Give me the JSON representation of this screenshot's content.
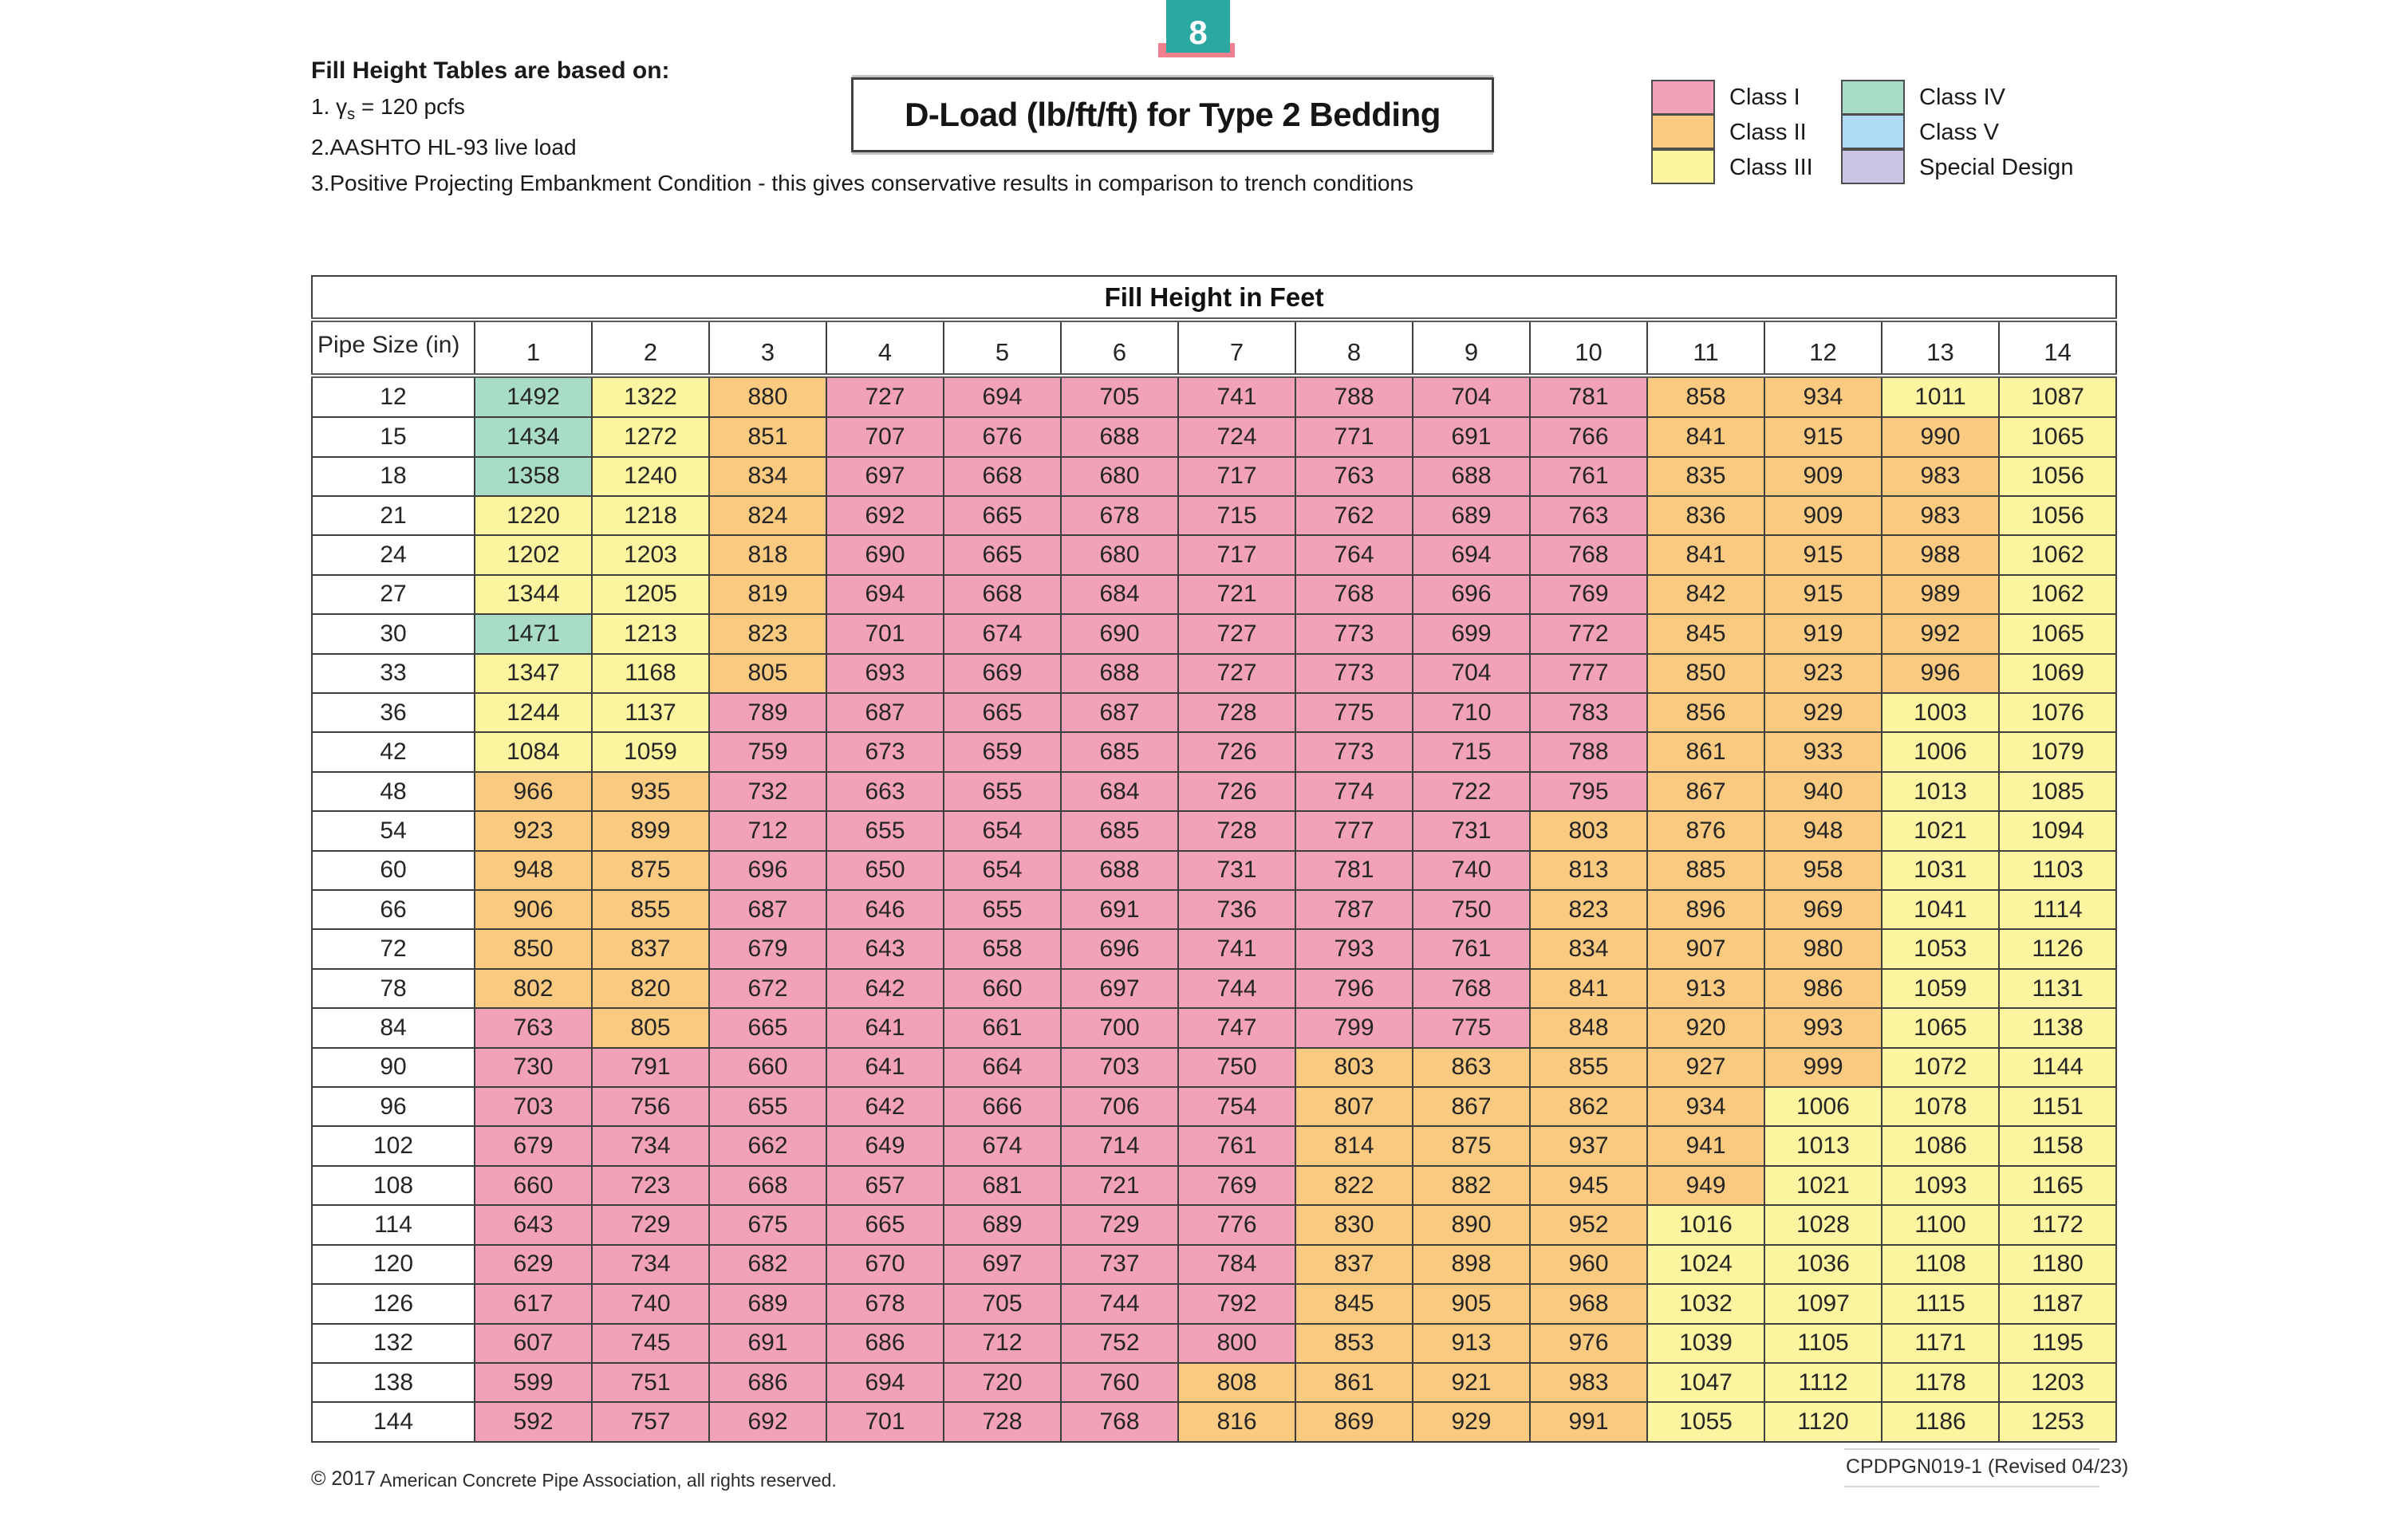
{
  "page_badge": {
    "number": "8",
    "color": "#2ba8a2",
    "underline_color": "#f08090"
  },
  "notes": {
    "heading": "Fill Height Tables are based on:",
    "item1_prefix": "1. γ",
    "item1_sub": "s",
    "item1_suffix": " = 120 pcfs",
    "item2": "2.AASHTO HL-93 live load",
    "item3": "3.Positive Projecting Embankment Condition - this gives conservative results in comparison to trench conditions"
  },
  "title": "D-Load (lb/ft/ft) for Type 2 Bedding",
  "legend": {
    "left": [
      {
        "label": "Class I",
        "color": "#f2a2b8"
      },
      {
        "label": "Class II",
        "color": "#fbca81"
      },
      {
        "label": "Class III",
        "color": "#fcf49f"
      }
    ],
    "right": [
      {
        "label": "Class IV",
        "color": "#a9dcc6"
      },
      {
        "label": "Class V",
        "color": "#aedaf5"
      },
      {
        "label": "Special Design",
        "color": "#c8c4e2"
      }
    ]
  },
  "table": {
    "span_header": "Fill Height in Feet",
    "corner_header": "Pipe Size (in)",
    "fill_height_columns": [
      "1",
      "2",
      "3",
      "4",
      "5",
      "6",
      "7",
      "8",
      "9",
      "10",
      "11",
      "12",
      "13",
      "14"
    ],
    "class_limits": {
      "class1_max": 800,
      "class2_max": 1000,
      "class3_max": 1350
    },
    "cell_colors": {
      "class1": "#f2a2b8",
      "class2": "#fbca81",
      "class3": "#fcf49f",
      "class4": "#a9dcc6"
    },
    "rows": [
      {
        "pipe_size": "12",
        "values": [
          1492,
          1322,
          880,
          727,
          694,
          705,
          741,
          788,
          704,
          781,
          858,
          934,
          1011,
          1087
        ]
      },
      {
        "pipe_size": "15",
        "values": [
          1434,
          1272,
          851,
          707,
          676,
          688,
          724,
          771,
          691,
          766,
          841,
          915,
          990,
          1065
        ]
      },
      {
        "pipe_size": "18",
        "values": [
          1358,
          1240,
          834,
          697,
          668,
          680,
          717,
          763,
          688,
          761,
          835,
          909,
          983,
          1056
        ]
      },
      {
        "pipe_size": "21",
        "values": [
          1220,
          1218,
          824,
          692,
          665,
          678,
          715,
          762,
          689,
          763,
          836,
          909,
          983,
          1056
        ]
      },
      {
        "pipe_size": "24",
        "values": [
          1202,
          1203,
          818,
          690,
          665,
          680,
          717,
          764,
          694,
          768,
          841,
          915,
          988,
          1062
        ]
      },
      {
        "pipe_size": "27",
        "values": [
          1344,
          1205,
          819,
          694,
          668,
          684,
          721,
          768,
          696,
          769,
          842,
          915,
          989,
          1062
        ]
      },
      {
        "pipe_size": "30",
        "values": [
          1471,
          1213,
          823,
          701,
          674,
          690,
          727,
          773,
          699,
          772,
          845,
          919,
          992,
          1065
        ]
      },
      {
        "pipe_size": "33",
        "values": [
          1347,
          1168,
          805,
          693,
          669,
          688,
          727,
          773,
          704,
          777,
          850,
          923,
          996,
          1069
        ]
      },
      {
        "pipe_size": "36",
        "values": [
          1244,
          1137,
          789,
          687,
          665,
          687,
          728,
          775,
          710,
          783,
          856,
          929,
          1003,
          1076
        ]
      },
      {
        "pipe_size": "42",
        "values": [
          1084,
          1059,
          759,
          673,
          659,
          685,
          726,
          773,
          715,
          788,
          861,
          933,
          1006,
          1079
        ]
      },
      {
        "pipe_size": "48",
        "values": [
          966,
          935,
          732,
          663,
          655,
          684,
          726,
          774,
          722,
          795,
          867,
          940,
          1013,
          1085
        ]
      },
      {
        "pipe_size": "54",
        "values": [
          923,
          899,
          712,
          655,
          654,
          685,
          728,
          777,
          731,
          803,
          876,
          948,
          1021,
          1094
        ]
      },
      {
        "pipe_size": "60",
        "values": [
          948,
          875,
          696,
          650,
          654,
          688,
          731,
          781,
          740,
          813,
          885,
          958,
          1031,
          1103
        ]
      },
      {
        "pipe_size": "66",
        "values": [
          906,
          855,
          687,
          646,
          655,
          691,
          736,
          787,
          750,
          823,
          896,
          969,
          1041,
          1114
        ]
      },
      {
        "pipe_size": "72",
        "values": [
          850,
          837,
          679,
          643,
          658,
          696,
          741,
          793,
          761,
          834,
          907,
          980,
          1053,
          1126
        ]
      },
      {
        "pipe_size": "78",
        "values": [
          802,
          820,
          672,
          642,
          660,
          697,
          744,
          796,
          768,
          841,
          913,
          986,
          1059,
          1131
        ]
      },
      {
        "pipe_size": "84",
        "values": [
          763,
          805,
          665,
          641,
          661,
          700,
          747,
          799,
          775,
          848,
          920,
          993,
          1065,
          1138
        ]
      },
      {
        "pipe_size": "90",
        "values": [
          730,
          791,
          660,
          641,
          664,
          703,
          750,
          803,
          863,
          855,
          927,
          999,
          1072,
          1144
        ]
      },
      {
        "pipe_size": "96",
        "values": [
          703,
          756,
          655,
          642,
          666,
          706,
          754,
          807,
          867,
          862,
          934,
          1006,
          1078,
          1151
        ]
      },
      {
        "pipe_size": "102",
        "values": [
          679,
          734,
          662,
          649,
          674,
          714,
          761,
          814,
          875,
          937,
          941,
          1013,
          1086,
          1158
        ]
      },
      {
        "pipe_size": "108",
        "values": [
          660,
          723,
          668,
          657,
          681,
          721,
          769,
          822,
          882,
          945,
          949,
          1021,
          1093,
          1165
        ]
      },
      {
        "pipe_size": "114",
        "values": [
          643,
          729,
          675,
          665,
          689,
          729,
          776,
          830,
          890,
          952,
          1016,
          1028,
          1100,
          1172
        ]
      },
      {
        "pipe_size": "120",
        "values": [
          629,
          734,
          682,
          670,
          697,
          737,
          784,
          837,
          898,
          960,
          1024,
          1036,
          1108,
          1180
        ]
      },
      {
        "pipe_size": "126",
        "values": [
          617,
          740,
          689,
          678,
          705,
          744,
          792,
          845,
          905,
          968,
          1032,
          1097,
          1115,
          1187
        ]
      },
      {
        "pipe_size": "132",
        "values": [
          607,
          745,
          691,
          686,
          712,
          752,
          800,
          853,
          913,
          976,
          1039,
          1105,
          1171,
          1195
        ]
      },
      {
        "pipe_size": "138",
        "values": [
          599,
          751,
          686,
          694,
          720,
          760,
          808,
          861,
          921,
          983,
          1047,
          1112,
          1178,
          1203
        ]
      },
      {
        "pipe_size": "144",
        "values": [
          592,
          757,
          692,
          701,
          728,
          768,
          816,
          869,
          929,
          991,
          1055,
          1120,
          1186,
          1253
        ]
      }
    ]
  },
  "footer": {
    "copyright_prefix": "© 2017",
    "copyright_text": " American Concrete Pipe Association, all rights reserved.",
    "doc_code": "CPDPGN019-1 (Revised 04/23)"
  }
}
